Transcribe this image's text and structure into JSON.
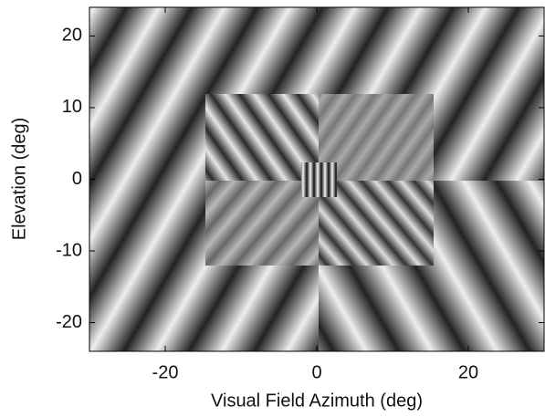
{
  "chart_data": {
    "type": "image",
    "xlabel": "Visual Field Azimuth (deg)",
    "ylabel": "Elevation (deg)",
    "xlim": [
      -30,
      30
    ],
    "ylim": [
      -24,
      24
    ],
    "xticks": [
      -20,
      0,
      20
    ],
    "yticks": [
      -20,
      -10,
      0,
      10,
      20
    ]
  }
}
